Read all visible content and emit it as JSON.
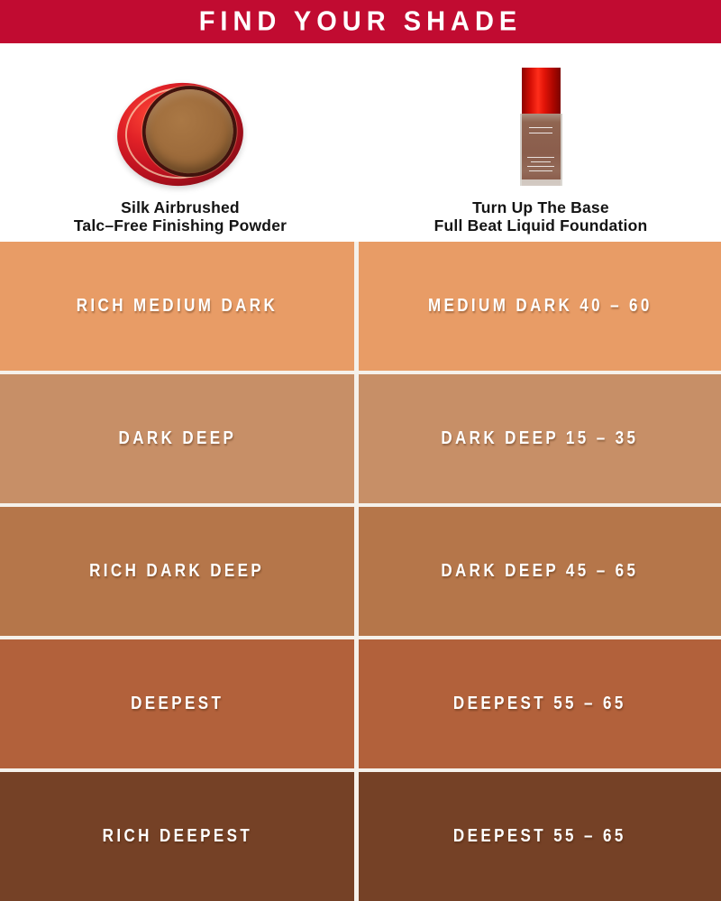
{
  "header": {
    "title": "FIND YOUR SHADE",
    "bg_color": "#C10B31",
    "text_color": "#FFFFFF"
  },
  "products": [
    {
      "image_icon": "red-compact-powder-icon",
      "name_line1": "Silk Airbrushed",
      "name_line2": "Talc–Free Finishing Powder"
    },
    {
      "image_icon": "red-cap-foundation-bottle-icon",
      "name_line1": "Turn Up The Base",
      "name_line2": "Full Beat Liquid Foundation"
    }
  ],
  "chart_data": {
    "type": "table",
    "title": "FIND YOUR SHADE",
    "columns": [
      "Silk Airbrushed Talc–Free Finishing Powder",
      "Turn Up The Base Full Beat Liquid Foundation"
    ],
    "rows": [
      {
        "powder_shade": "RICH MEDIUM DARK",
        "foundation_shade": "MEDIUM DARK 40 – 60",
        "swatch_color": "#E89C66"
      },
      {
        "powder_shade": "DARK DEEP",
        "foundation_shade": "DARK DEEP 15 – 35",
        "swatch_color": "#C78F67"
      },
      {
        "powder_shade": "RICH DARK DEEP",
        "foundation_shade": "DARK DEEP 45 – 65",
        "swatch_color": "#B5764A"
      },
      {
        "powder_shade": "DEEPEST",
        "foundation_shade": "DEEPEST 55 – 65",
        "swatch_color": "#B2613B"
      },
      {
        "powder_shade": "RICH DEEPEST",
        "foundation_shade": "DEEPEST 55 – 65",
        "swatch_color": "#754126"
      }
    ],
    "layout": {
      "divider_color": "#F5F1EB",
      "label_color": "#FFFFFF",
      "grid": "2 columns x 5 rows"
    }
  }
}
